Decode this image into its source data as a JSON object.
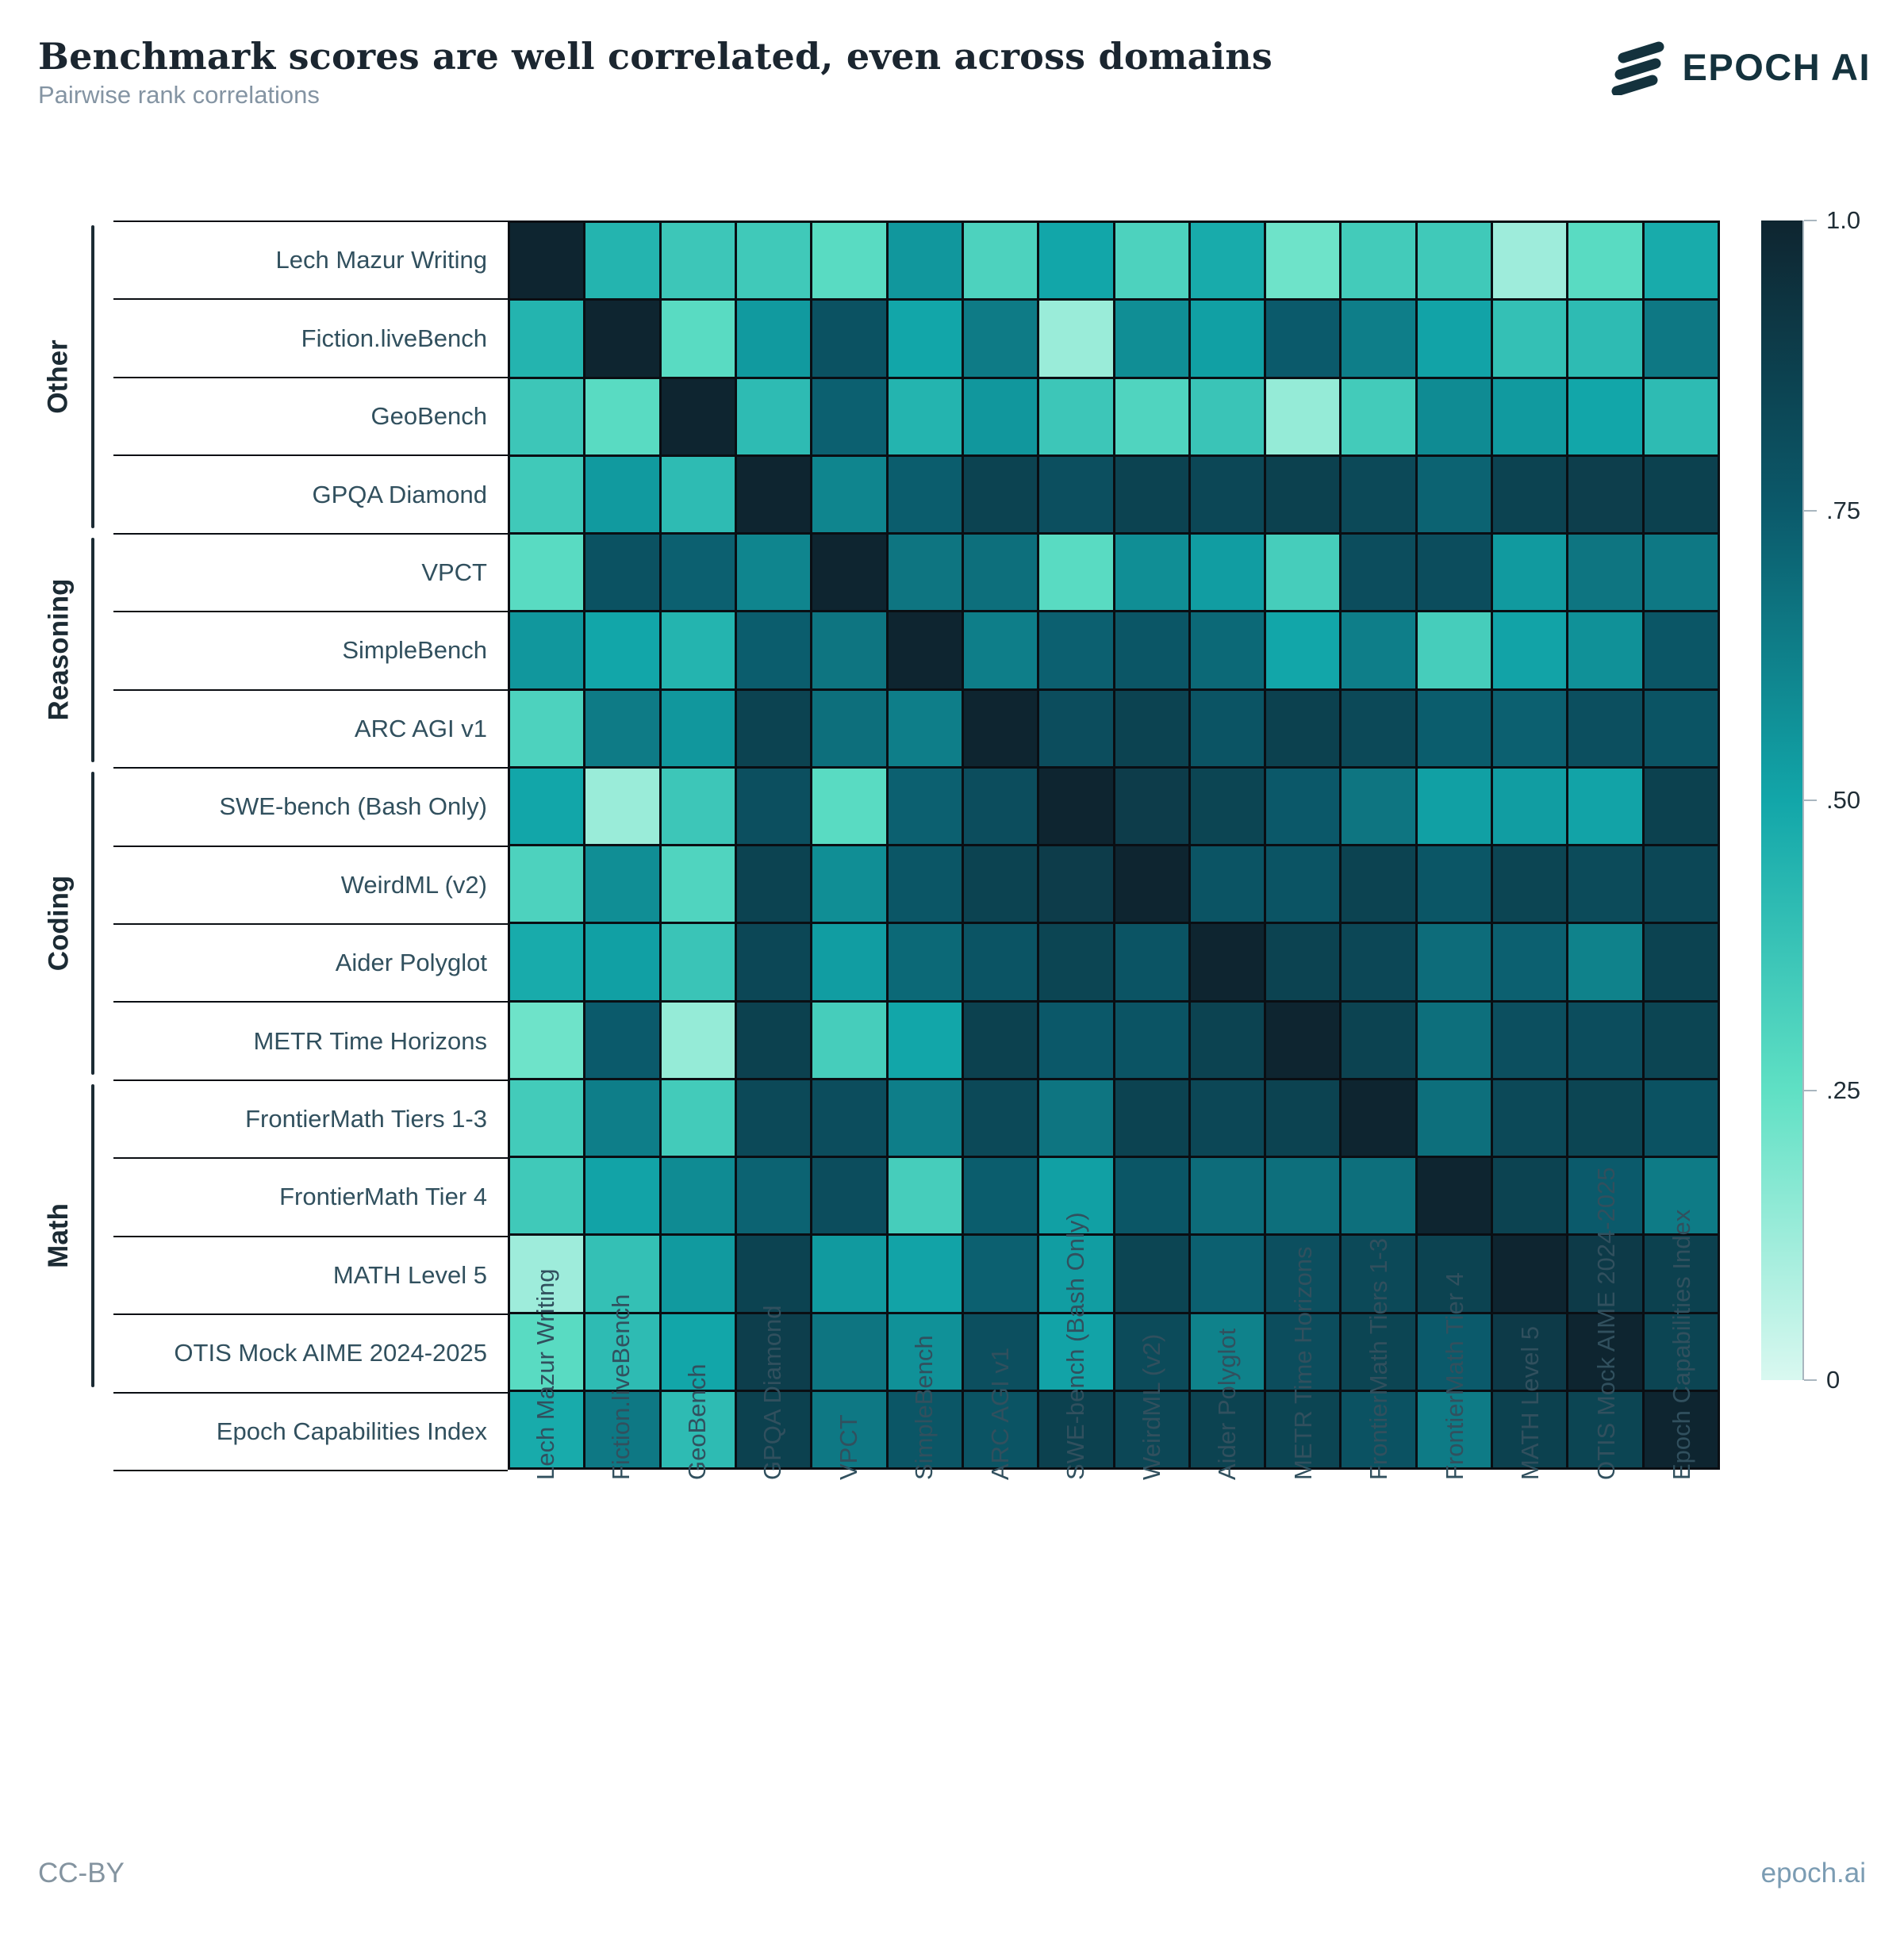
{
  "header": {
    "title": "Benchmark scores are well correlated, even across domains",
    "subtitle": "Pairwise rank correlations",
    "logo_text": "EPOCH AI"
  },
  "footer": {
    "license": "CC-BY",
    "site": "epoch.ai"
  },
  "groups": [
    {
      "label": "Other",
      "start": 0,
      "end": 3
    },
    {
      "label": "Reasoning",
      "start": 4,
      "end": 6
    },
    {
      "label": "Coding",
      "start": 7,
      "end": 10
    },
    {
      "label": "Math",
      "start": 11,
      "end": 14
    }
  ],
  "colorbar": {
    "tick_labels": [
      "1.0",
      ".75",
      ".50",
      ".25",
      "0"
    ],
    "tick_values": [
      1.0,
      0.75,
      0.5,
      0.25,
      0
    ]
  },
  "chart_data": {
    "type": "heatmap",
    "title": "Benchmark scores are well correlated, even across domains",
    "subtitle": "Pairwise rank correlations",
    "value_name": "pairwise rank correlation",
    "value_range": [
      0,
      1
    ],
    "legend_position": "right",
    "grid": "black cell borders",
    "color_scale_anchors": {
      "0.0": "#d9f8f0",
      "0.25": "#5fe0c4",
      "0.5": "#12a6a9",
      "0.75": "#0b5a6b",
      "1.0": "#0e2530"
    },
    "labels": [
      "Lech Mazur Writing",
      "Fiction.liveBench",
      "GeoBench",
      "GPQA Diamond",
      "VPCT",
      "SimpleBench",
      "ARC AGI v1",
      "SWE-bench (Bash Only)",
      "WeirdML (v2)",
      "Aider Polyglot",
      "METR Time Horizons",
      "FrontierMath Tiers 1-3",
      "FrontierMath Tier 4",
      "MATH Level 5",
      "OTIS Mock AIME 2024-2025",
      "Epoch Capabilities Index"
    ],
    "matrix": [
      [
        1.0,
        0.44,
        0.36,
        0.35,
        0.27,
        0.55,
        0.31,
        0.5,
        0.31,
        0.48,
        0.22,
        0.34,
        0.35,
        0.12,
        0.27,
        0.48
      ],
      [
        0.44,
        1.0,
        0.27,
        0.54,
        0.79,
        0.5,
        0.64,
        0.13,
        0.58,
        0.52,
        0.75,
        0.63,
        0.51,
        0.39,
        0.41,
        0.65
      ],
      [
        0.36,
        0.27,
        1.0,
        0.41,
        0.73,
        0.44,
        0.55,
        0.36,
        0.3,
        0.37,
        0.14,
        0.34,
        0.59,
        0.54,
        0.5,
        0.41
      ],
      [
        0.35,
        0.54,
        0.41,
        1.0,
        0.61,
        0.74,
        0.86,
        0.8,
        0.86,
        0.84,
        0.87,
        0.83,
        0.72,
        0.86,
        0.88,
        0.87
      ],
      [
        0.27,
        0.79,
        0.73,
        0.61,
        1.0,
        0.66,
        0.68,
        0.27,
        0.58,
        0.53,
        0.33,
        0.81,
        0.81,
        0.54,
        0.66,
        0.65
      ],
      [
        0.55,
        0.5,
        0.44,
        0.74,
        0.66,
        1.0,
        0.63,
        0.73,
        0.77,
        0.7,
        0.5,
        0.63,
        0.33,
        0.51,
        0.57,
        0.77
      ],
      [
        0.31,
        0.64,
        0.55,
        0.86,
        0.68,
        0.63,
        1.0,
        0.81,
        0.86,
        0.78,
        0.87,
        0.83,
        0.74,
        0.73,
        0.8,
        0.78
      ],
      [
        0.5,
        0.13,
        0.36,
        0.8,
        0.27,
        0.73,
        0.81,
        1.0,
        0.89,
        0.85,
        0.76,
        0.66,
        0.52,
        0.53,
        0.51,
        0.87
      ],
      [
        0.31,
        0.58,
        0.3,
        0.86,
        0.58,
        0.77,
        0.86,
        0.89,
        1.0,
        0.78,
        0.78,
        0.86,
        0.77,
        0.85,
        0.82,
        0.84
      ],
      [
        0.48,
        0.52,
        0.37,
        0.84,
        0.53,
        0.7,
        0.78,
        0.85,
        0.78,
        1.0,
        0.86,
        0.84,
        0.69,
        0.73,
        0.62,
        0.86
      ],
      [
        0.22,
        0.75,
        0.14,
        0.87,
        0.33,
        0.5,
        0.87,
        0.76,
        0.78,
        0.86,
        1.0,
        0.86,
        0.68,
        0.8,
        0.81,
        0.85
      ],
      [
        0.34,
        0.63,
        0.34,
        0.83,
        0.81,
        0.63,
        0.83,
        0.66,
        0.86,
        0.84,
        0.86,
        1.0,
        0.68,
        0.83,
        0.85,
        0.79
      ],
      [
        0.35,
        0.51,
        0.59,
        0.72,
        0.81,
        0.33,
        0.74,
        0.52,
        0.77,
        0.69,
        0.68,
        0.68,
        1.0,
        0.86,
        0.75,
        0.64
      ],
      [
        0.12,
        0.39,
        0.54,
        0.86,
        0.54,
        0.51,
        0.73,
        0.53,
        0.85,
        0.73,
        0.8,
        0.83,
        0.86,
        1.0,
        0.9,
        0.87
      ],
      [
        0.27,
        0.41,
        0.5,
        0.88,
        0.66,
        0.57,
        0.8,
        0.51,
        0.82,
        0.62,
        0.81,
        0.85,
        0.75,
        0.9,
        1.0,
        0.85
      ],
      [
        0.48,
        0.65,
        0.41,
        0.87,
        0.65,
        0.77,
        0.78,
        0.87,
        0.84,
        0.86,
        0.85,
        0.79,
        0.64,
        0.87,
        0.85,
        1.0
      ]
    ]
  }
}
